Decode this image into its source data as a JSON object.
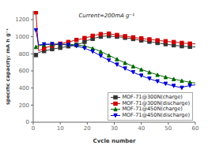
{
  "chart_data": {
    "type": "line",
    "title": "Current=200mA g⁻¹",
    "xlabel": "Cycle number",
    "ylabel": "specific capacity/ mA h g⁻¹",
    "xlim": [
      0,
      60
    ],
    "ylim": [
      0,
      1300
    ],
    "xticks": [
      0,
      10,
      20,
      30,
      40,
      50,
      60
    ],
    "yticks": [
      0,
      200,
      400,
      600,
      800,
      1000,
      1200
    ],
    "grid": false,
    "legend": "lower right",
    "x": [
      1,
      2,
      3,
      4,
      5,
      6,
      7,
      8,
      9,
      10,
      11,
      12,
      13,
      14,
      15,
      16,
      17,
      18,
      19,
      20,
      21,
      22,
      23,
      24,
      25,
      26,
      27,
      28,
      29,
      30,
      31,
      32,
      33,
      34,
      35,
      36,
      37,
      38,
      39,
      40,
      41,
      42,
      43,
      44,
      45,
      46,
      47,
      48,
      49,
      50,
      51,
      52,
      53,
      54,
      55,
      56,
      57,
      58,
      59,
      60
    ],
    "series": [
      {
        "name": "MOF-71@300N(charge)",
        "color": "#333333",
        "marker": "square",
        "values": [
          785,
          815,
          825,
          832,
          840,
          848,
          855,
          860,
          865,
          870,
          876,
          882,
          888,
          893,
          898,
          905,
          915,
          925,
          940,
          955,
          965,
          975,
          985,
          993,
          1000,
          1005,
          1007,
          1008,
          1005,
          1002,
          1000,
          997,
          993,
          988,
          983,
          978,
          973,
          968,
          962,
          957,
          952,
          947,
          942,
          937,
          932,
          927,
          922,
          917,
          913,
          908,
          904,
          900,
          896,
          892,
          889,
          886,
          884,
          882,
          881,
          880
        ]
      },
      {
        "name": "MOF-71@300N(discharge)",
        "color": "#cc0000",
        "marker": "square",
        "values": [
          1285,
          835,
          850,
          862,
          875,
          885,
          895,
          903,
          912,
          918,
          924,
          932,
          938,
          945,
          955,
          962,
          968,
          975,
          984,
          992,
          1000,
          1010,
          1018,
          1025,
          1030,
          1033,
          1035,
          1035,
          1030,
          1025,
          1020,
          1015,
          1010,
          1005,
          1000,
          996,
          992,
          988,
          984,
          980,
          976,
          972,
          968,
          965,
          961,
          957,
          953,
          950,
          947,
          943,
          940,
          937,
          934,
          930,
          927,
          924,
          921,
          919,
          917,
          916
        ]
      },
      {
        "name": "MOF-71@450N(charge)",
        "color": "#006600",
        "marker": "triangle-up",
        "values": [
          880,
          892,
          900,
          904,
          908,
          910,
          912,
          912,
          913,
          913,
          912,
          911,
          910,
          908,
          906,
          903,
          900,
          896,
          890,
          882,
          873,
          863,
          852,
          840,
          826,
          812,
          797,
          782,
          767,
          752,
          737,
          722,
          708,
          694,
          680,
          667,
          654,
          641,
          629,
          617,
          606,
          595,
          584,
          574,
          564,
          554,
          545,
          536,
          528,
          520,
          512,
          505,
          498,
          491,
          485,
          479,
          473,
          468,
          463,
          458
        ]
      },
      {
        "name": "MOF-71@450N(discharge)",
        "color": "#0000cc",
        "marker": "triangle-down",
        "values": [
          1075,
          905,
          907,
          910,
          912,
          913,
          914,
          913,
          912,
          910,
          908,
          905,
          902,
          898,
          894,
          890,
          883,
          875,
          865,
          853,
          840,
          826,
          810,
          793,
          775,
          757,
          740,
          723,
          706,
          690,
          673,
          657,
          642,
          627,
          612,
          598,
          584,
          570,
          557,
          544,
          532,
          520,
          509,
          498,
          487,
          477,
          467,
          458,
          449,
          440,
          432,
          424,
          416,
          409,
          402,
          416,
          422,
          427,
          432,
          437
        ]
      }
    ]
  }
}
